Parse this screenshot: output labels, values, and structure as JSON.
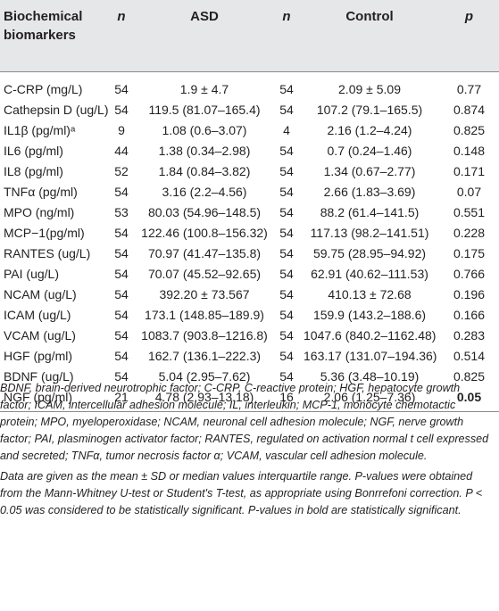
{
  "table": {
    "headers": {
      "biomarker": "Biochemical biomarkers",
      "n1": "n",
      "asd": "ASD",
      "n2": "n",
      "control": "Control",
      "p": "p"
    },
    "rows": [
      {
        "label": "C-CRP (mg/L)",
        "n_asd": "54",
        "asd": "1.9 ± 4.7",
        "n_ctrl": "54",
        "ctrl": "2.09 ± 5.09",
        "p": "0.77",
        "bold": false
      },
      {
        "label": "Cathepsin D (ug/L)",
        "n_asd": "54",
        "asd": "119.5 (81.07–165.4)",
        "n_ctrl": "54",
        "ctrl": "107.2 (79.1–165.5)",
        "p": "0.874",
        "bold": false
      },
      {
        "label": "IL1β (pg/ml)ᵃ",
        "n_asd": "9",
        "asd": "1.08 (0.6–3.07)",
        "n_ctrl": "4",
        "ctrl": "2.16 (1.2–4.24)",
        "p": "0.825",
        "bold": false
      },
      {
        "label": "IL6 (pg/ml)",
        "n_asd": "44",
        "asd": "1.38 (0.34–2.98)",
        "n_ctrl": "54",
        "ctrl": "0.7 (0.24–1.46)",
        "p": "0.148",
        "bold": false
      },
      {
        "label": "IL8 (pg/ml)",
        "n_asd": "52",
        "asd": "1.84 (0.84–3.82)",
        "n_ctrl": "54",
        "ctrl": "1.34 (0.67–2.77)",
        "p": "0.171",
        "bold": false
      },
      {
        "label": "TNFα (pg/ml)",
        "n_asd": "54",
        "asd": "3.16 (2.2–4.56)",
        "n_ctrl": "54",
        "ctrl": "2.66 (1.83–3.69)",
        "p": "0.07",
        "bold": false
      },
      {
        "label": "MPO (ng/ml)",
        "n_asd": "53",
        "asd": "80.03 (54.96–148.5)",
        "n_ctrl": "54",
        "ctrl": "88.2 (61.4–141.5)",
        "p": "0.551",
        "bold": false
      },
      {
        "label": "MCP−1(pg/ml)",
        "n_asd": "54",
        "asd": "122.46 (100.8–156.32)",
        "n_ctrl": "54",
        "ctrl": "117.13 (98.2–141.51)",
        "p": "0.228",
        "bold": false
      },
      {
        "label": "RANTES (ug/L)",
        "n_asd": "54",
        "asd": "70.97 (41.47–135.8)",
        "n_ctrl": "54",
        "ctrl": "59.75 (28.95–94.92)",
        "p": "0.175",
        "bold": false
      },
      {
        "label": "PAI (ug/L)",
        "n_asd": "54",
        "asd": "70.07 (45.52–92.65)",
        "n_ctrl": "54",
        "ctrl": "62.91 (40.62–111.53)",
        "p": "0.766",
        "bold": false
      },
      {
        "label": "NCAM (ug/L)",
        "n_asd": "54",
        "asd": "392.20 ± 73.567",
        "n_ctrl": "54",
        "ctrl": "410.13 ± 72.68",
        "p": "0.196",
        "bold": false
      },
      {
        "label": "ICAM (ug/L)",
        "n_asd": "54",
        "asd": "173.1 (148.85–189.9)",
        "n_ctrl": "54",
        "ctrl": "159.9 (143.2–188.6)",
        "p": "0.166",
        "bold": false
      },
      {
        "label": "VCAM (ug/L)",
        "n_asd": "54",
        "asd": "1083.7 (903.8–1216.8)",
        "n_ctrl": "54",
        "ctrl": "1047.6 (840.2–1162.48)",
        "p": "0.283",
        "bold": false
      },
      {
        "label": "HGF (pg/ml)",
        "n_asd": "54",
        "asd": "162.7 (136.1–222.3)",
        "n_ctrl": "54",
        "ctrl": "163.17 (131.07–194.36)",
        "p": "0.514",
        "bold": false
      },
      {
        "label": "BDNF (ug/L)",
        "n_asd": "54",
        "asd": "5.04 (2.95–7.62)",
        "n_ctrl": "54",
        "ctrl": "5.36 (3.48–10.19)",
        "p": "0.825",
        "bold": false
      },
      {
        "label": "NGF (pg/ml)",
        "n_asd": "21",
        "asd": "4.78 (2.93–13.18)",
        "n_ctrl": "16",
        "ctrl": "2.06 (1.25–7.36)",
        "p": "0.05",
        "bold": true
      }
    ]
  },
  "footnotes": {
    "abbreviations": "BDNF, brain-derived neurotrophic factor; C-CRP, C-reactive protein; HGF, hepatocyte growth factor; ICAM, intercellular adhesion molecule; IL, interleukin; MCP-1, monocyte chemotactic protein; MPO, myeloperoxidase; NCAM, neuronal cell adhesion molecule; NGF, nerve growth factor; PAI, plasminogen activator factor; RANTES, regulated on activation normal t cell expressed and secreted; TNFα, tumor necrosis factor α; VCAM, vascular cell adhesion molecule.",
    "data_note": "Data are given as the mean ± SD or median values interquartile range. P-values were obtained from the Mann-Whitney U-test or Student's T-test, as appropriate using Bonrrefoni correction. P < 0.05 was considered to be statistically significant. P-values in bold are statistically significant."
  }
}
